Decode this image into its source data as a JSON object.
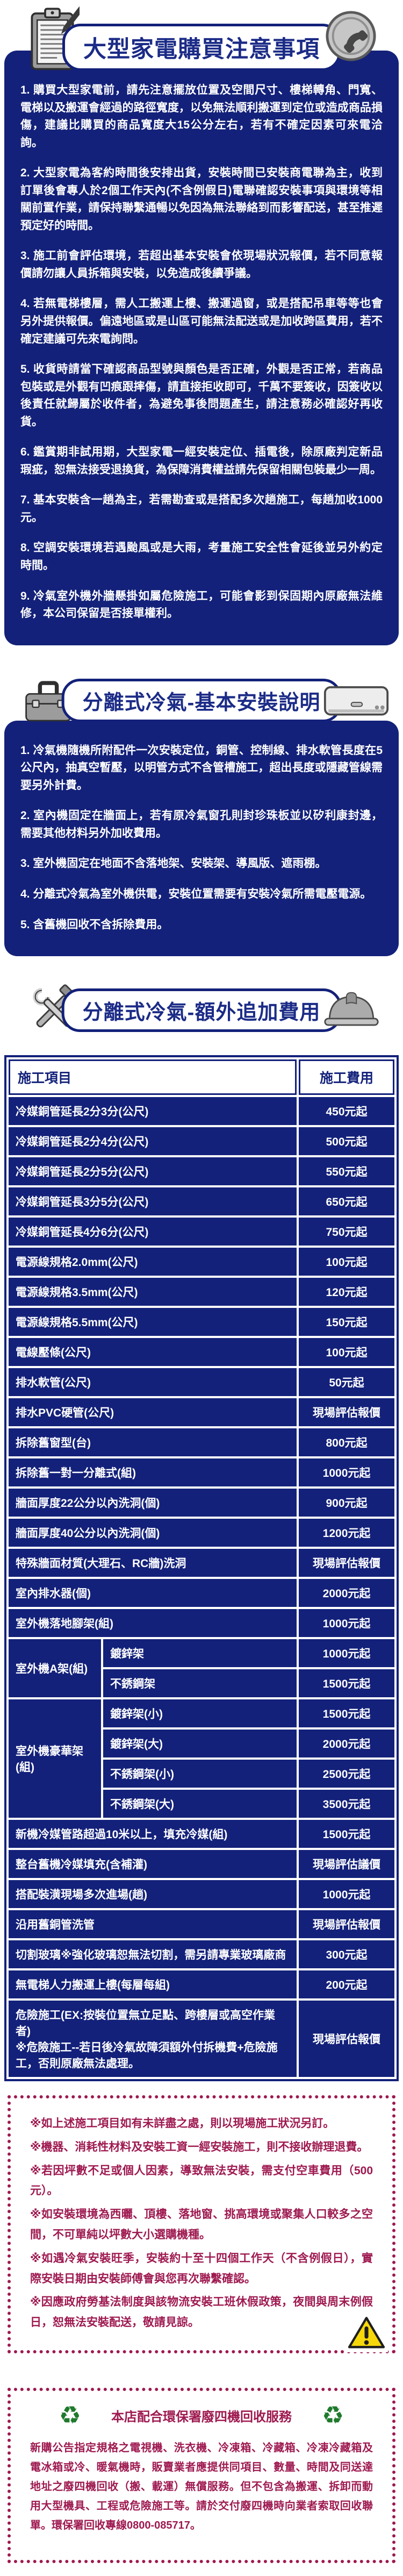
{
  "colors": {
    "navy": "#13217a",
    "title_navy": "#1b2b87",
    "maroon": "#9e1950",
    "warning_yellow": "#f6d70a",
    "recycle_green": "#1f7a2d",
    "icon_gray": "#a9a9a9"
  },
  "icons": {
    "clipboard": "clipboard-icon",
    "phone": "phone-icon",
    "toolbox": "toolbox-icon",
    "ac_unit": "air-conditioner-icon",
    "tools": "crossed-tools-icon",
    "helmet": "safety-helmet-icon",
    "warning": "warning-triangle-icon",
    "recycle_glyph": "♻"
  },
  "purchase": {
    "title": "大型家電購買注意事項",
    "items": [
      "1. 購買大型家電前，請先注意擺放位置及空間尺寸、樓梯轉角、門寬、電梯以及搬運會經過的路徑寬度，以免無法順利搬運到定位或造成商品損傷，建議比購買的商品寬度大15公分左右，若有不確定因素可來電洽詢。",
      "2. 大型家電為客約時間後安排出貨，安裝時間已安裝商電聯為主，收到訂單後會專人於2個工作天內(不含例假日)電聯確認安裝事項與環境等相關前置作業，請保持聯繫通暢以免因為無法聯絡到而影響配送，甚至推遲預定好的時間。",
      "3. 施工前會評估環境，若超出基本安裝會依現場狀況報價，若不同意報價請勿讓人員拆箱與安裝，以免造成後續爭議。",
      "4. 若無電梯樓層，需人工搬運上樓、搬運過窗，或是搭配吊車等等也會另外提供報價。偏遠地區或是山區可能無法配送或是加收跨區費用，若不確定建議可先來電詢問。",
      "5. 收貨時請當下確認商品型號與顏色是否正確，外觀是否正常，若商品包裝或是外觀有凹痕跟摔傷，請直接拒收即可，千萬不要簽收，因簽收以後責任就歸屬於收件者，為避免事後問題產生，請注意務必確認好再收貨。",
      "6. 鑑賞期非試用期，大型家電一經安裝定位、插電後，除原廠判定新品瑕疵，恕無法接受退換貨，為保障消費權益請先保留相關包裝最少一周。",
      "7. 基本安裝含一趟為主，若需勘查或是搭配多次趟施工，每趟加收1000元。",
      "8. 空調安裝環境若遇颱風或是大雨，考量施工安全性會延後並另外約定時間。",
      "9. 冷氣室外機外牆懸掛如屬危險施工，可能會影到保固期內原廠無法維修，本公司保留是否接單權利。"
    ]
  },
  "install": {
    "title": "分離式冷氣-基本安裝說明",
    "items": [
      "1. 冷氣機隨機所附配件一次安裝定位，銅管、控制線、排水軟管長度在5公尺內，抽真空暫壓，以明管方式不含管槽施工，超出長度或隱藏管線需要另外計費。",
      "2. 室內機固定在牆面上，若有原冷氣窗孔則封珍珠板並以矽利康封邊，需要其他材料另外加收費用。",
      "3. 室外機固定在地面不含落地架、安裝架、導風版、遮雨棚。",
      "4. 分離式冷氣為室外機供電，安裝位置需要有安裝冷氣所需電壓電源。",
      "5. 含舊機回收不含拆除費用。"
    ]
  },
  "fees": {
    "title": "分離式冷氣-額外追加費用",
    "col_item": "施工項目",
    "col_fee": "施工費用",
    "rows": [
      {
        "item": "冷媒銅管延長2分3分(公尺)",
        "fee": "450元起"
      },
      {
        "item": "冷媒銅管延長2分4分(公尺)",
        "fee": "500元起"
      },
      {
        "item": "冷媒銅管延長2分5分(公尺)",
        "fee": "550元起"
      },
      {
        "item": "冷媒銅管延長3分5分(公尺)",
        "fee": "650元起"
      },
      {
        "item": "冷媒銅管延長4分6分(公尺)",
        "fee": "750元起"
      },
      {
        "item": "電源線規格2.0mm(公尺)",
        "fee": "100元起"
      },
      {
        "item": "電源線規格3.5mm(公尺)",
        "fee": "120元起"
      },
      {
        "item": "電源線規格5.5mm(公尺)",
        "fee": "150元起"
      },
      {
        "item": "電線壓條(公尺)",
        "fee": "100元起"
      },
      {
        "item": "排水軟管(公尺)",
        "fee": "50元起"
      },
      {
        "item": "排水PVC硬管(公尺)",
        "fee": "現場評估報價"
      },
      {
        "item": "拆除舊窗型(台)",
        "fee": "800元起"
      },
      {
        "item": "拆除舊一對一分離式(組)",
        "fee": "1000元起"
      },
      {
        "item": "牆面厚度22公分以內洗洞(個)",
        "fee": "900元起"
      },
      {
        "item": "牆面厚度40公分以內洗洞(個)",
        "fee": "1200元起"
      },
      {
        "item": "特殊牆面材質(大理石、RC牆)洗洞",
        "fee": "現場評估報價"
      },
      {
        "item": "室內排水器(個)",
        "fee": "2000元起"
      },
      {
        "item": "室外機落地腳架(組)",
        "fee": "1000元起"
      },
      {
        "item": "室外機A架(組)",
        "sub": [
          {
            "item": "鍍鋅架",
            "fee": "1000元起"
          },
          {
            "item": "不銹鋼架",
            "fee": "1500元起"
          }
        ]
      },
      {
        "item": "室外機豪華架(組)",
        "sub": [
          {
            "item": "鍍鋅架(小)",
            "fee": "1500元起"
          },
          {
            "item": "鍍鋅架(大)",
            "fee": "2000元起"
          },
          {
            "item": "不銹鋼架(小)",
            "fee": "2500元起"
          },
          {
            "item": "不銹鋼架(大)",
            "fee": "3500元起"
          }
        ]
      },
      {
        "item": "新機冷媒管路超過10米以上，填充冷媒(組)",
        "fee": "1500元起"
      },
      {
        "item": "整台舊機冷媒填充(含補灌)",
        "fee": "現場評估議價"
      },
      {
        "item": "搭配裝潢現場多次進場(趟)",
        "fee": "1000元起"
      },
      {
        "item": "沿用舊銅管洗管",
        "fee": "現場評估報價"
      },
      {
        "item": "切割玻璃※強化玻璃恕無法切割，需另請專業玻璃廠商",
        "fee": "300元起"
      },
      {
        "item": "無電梯人力搬運上樓(每層每組)",
        "fee": "200元起"
      },
      {
        "item": "危險施工(EX:按裝位置無立足點、跨樓層或高空作業者)\n※危險施工--若日後冷氣故障須額外付拆機費+危險施工，否則原廠無法處理。",
        "fee": "現場評估報價"
      }
    ]
  },
  "notes": {
    "items": [
      "※如上述施工項目如有未詳盡之處，則以現場施工狀況另訂。",
      "※機器、消耗性材料及安裝工資一經安裝施工，則不接收辦理退費。",
      "※若因坪數不足或個人因素，導致無法安裝，需支付空車費用（500元）。",
      "※如安裝環境為西曬、頂樓、落地窗、挑高環境或聚集人口較多之空間，不可單純以坪數大小選購機種。",
      "※如遇冷氣安裝旺季，安裝約十至十四個工作天（不含例假日），實際安裝日期由安裝師傅會與您再次聯繫確認。",
      "※因應政府勞基法制度與該物流安裝工班休假政策，夜間與周末例假日，恕無法安裝配送，敬請見諒。"
    ]
  },
  "recycle": {
    "title": "本店配合環保署廢四機回收服務",
    "body": "新購公告指定規格之電視機、洗衣機、冷凍箱、冷藏箱、冷凍冷藏箱及電冰箱或冷、暖氣機時，販賣業者應提供同項目、數量、時間及同送達地址之廢四機回收（搬、載運）無償服務。但不包含為搬運、拆卸而動用大型機具、工程或危險施工等。請於交付廢四機時向業者索取回收聯單。環保署回收專線0800-085717。"
  }
}
